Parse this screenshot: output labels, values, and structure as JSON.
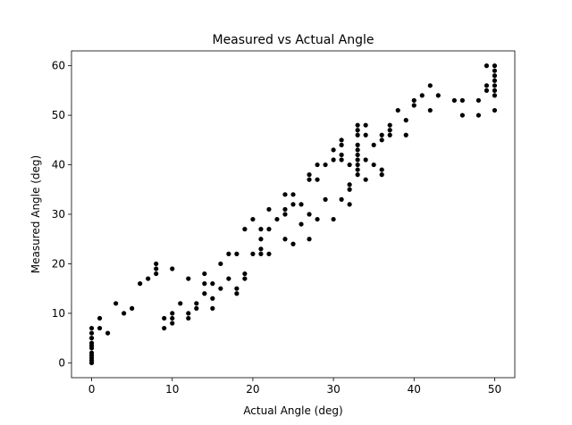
{
  "chart_data": {
    "type": "scatter",
    "title": "Measured vs Actual Angle",
    "xlabel": "Actual Angle (deg)",
    "ylabel": "Measured Angle (deg)",
    "color": "#000000",
    "x": [
      0,
      0,
      0,
      0,
      0,
      0,
      0,
      0,
      0,
      0,
      0,
      1,
      1,
      2,
      3,
      4,
      5,
      6,
      7,
      8,
      8,
      8,
      9,
      9,
      10,
      10,
      10,
      10,
      11,
      12,
      12,
      12,
      13,
      13,
      14,
      14,
      14,
      15,
      15,
      15,
      16,
      16,
      17,
      17,
      18,
      18,
      18,
      19,
      19,
      19,
      20,
      20,
      21,
      21,
      21,
      21,
      22,
      22,
      22,
      23,
      24,
      24,
      24,
      24,
      25,
      25,
      25,
      26,
      26,
      27,
      27,
      27,
      27,
      28,
      28,
      28,
      29,
      29,
      30,
      30,
      30,
      31,
      31,
      31,
      31,
      31,
      32,
      32,
      32,
      32,
      33,
      33,
      33,
      33,
      33,
      33,
      33,
      33,
      33,
      33,
      34,
      34,
      34,
      34,
      35,
      35,
      36,
      36,
      36,
      36,
      37,
      37,
      37,
      38,
      39,
      39,
      40,
      40,
      41,
      42,
      42,
      43,
      45,
      46,
      46,
      48,
      48,
      49,
      49,
      49,
      50,
      50,
      50,
      50,
      50,
      50,
      50,
      50
    ],
    "y": [
      0,
      0.5,
      1,
      1.5,
      2,
      3,
      3.5,
      4,
      5,
      6,
      7,
      7,
      9,
      6,
      12,
      10,
      11,
      16,
      17,
      18,
      19,
      20,
      7,
      9,
      8,
      9,
      10,
      19,
      12,
      9,
      10,
      17,
      11,
      12,
      14,
      16,
      18,
      11,
      13,
      16,
      15,
      20,
      17,
      22,
      14,
      15,
      22,
      17,
      18,
      27,
      22,
      29,
      22,
      23,
      25,
      27,
      22,
      27,
      31,
      29,
      25,
      30,
      31,
      34,
      24,
      32,
      34,
      28,
      32,
      25,
      30,
      37,
      38,
      29,
      37,
      40,
      33,
      40,
      29,
      41,
      43,
      33,
      41,
      42,
      44,
      45,
      32,
      35,
      36,
      40,
      38,
      39,
      40,
      41,
      42,
      43,
      44,
      46,
      47,
      48,
      37,
      41,
      46,
      48,
      40,
      44,
      38,
      39,
      45,
      46,
      46,
      47,
      48,
      51,
      46,
      49,
      52,
      53,
      54,
      51,
      56,
      54,
      53,
      50,
      53,
      50,
      53,
      55,
      56,
      60,
      51,
      54,
      55,
      56,
      57,
      58,
      59,
      60
    ],
    "xlim": [
      -2.5,
      52.5
    ],
    "ylim": [
      -3,
      63
    ],
    "xticks": [
      0,
      10,
      20,
      30,
      40,
      50
    ],
    "yticks": [
      0,
      10,
      20,
      30,
      40,
      50,
      60
    ]
  }
}
